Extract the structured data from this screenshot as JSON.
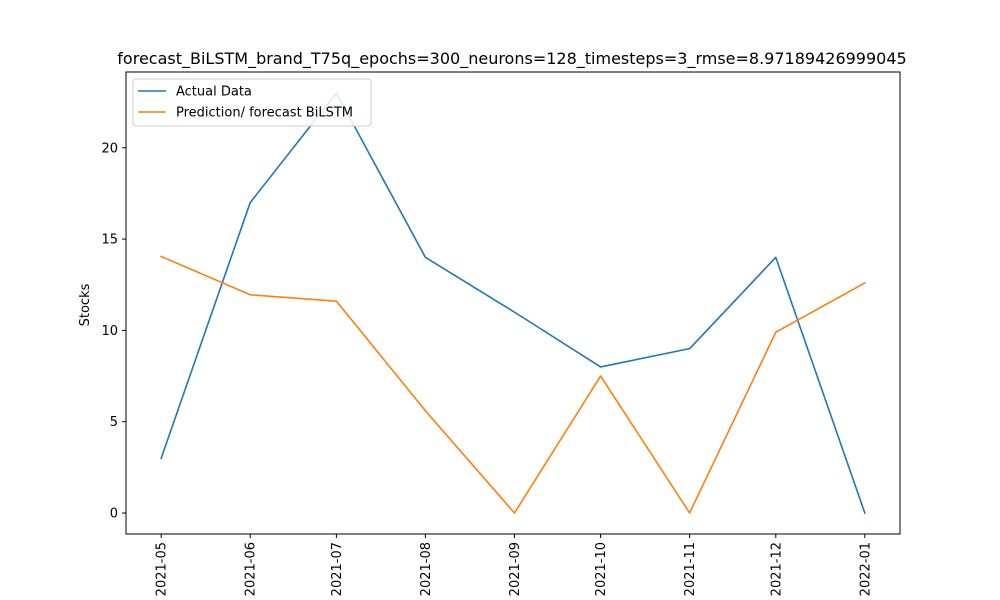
{
  "chart_data": {
    "type": "line",
    "title": "forecast_BiLSTM_brand_T75q_epochs=300_neurons=128_timesteps=3_rmse=8.97189426999045",
    "xlabel": "",
    "ylabel": "Stocks",
    "x": [
      "2021-05",
      "2021-06",
      "2021-07",
      "2021-08",
      "2021-09",
      "2021-10",
      "2021-11",
      "2021-12",
      "2022-01"
    ],
    "x_days": [
      0,
      31,
      61,
      92,
      123,
      153,
      184,
      214,
      245
    ],
    "xlim_days": [
      -12.25,
      257.25
    ],
    "ylim": [
      -1.15,
      24.15
    ],
    "yticks": [
      0,
      5,
      10,
      15,
      20
    ],
    "grid": false,
    "legend_position": "top-left",
    "series": [
      {
        "name": "Actual Data",
        "color": "#1f77b4",
        "values": [
          3,
          17,
          23,
          14,
          11,
          8,
          9,
          14,
          0
        ]
      },
      {
        "name": "Prediction/ forecast BiLSTM",
        "color": "#ff7f0e",
        "values": [
          14.05,
          11.95,
          11.6,
          5.6,
          0,
          7.5,
          0,
          9.9,
          12.6
        ]
      }
    ]
  }
}
